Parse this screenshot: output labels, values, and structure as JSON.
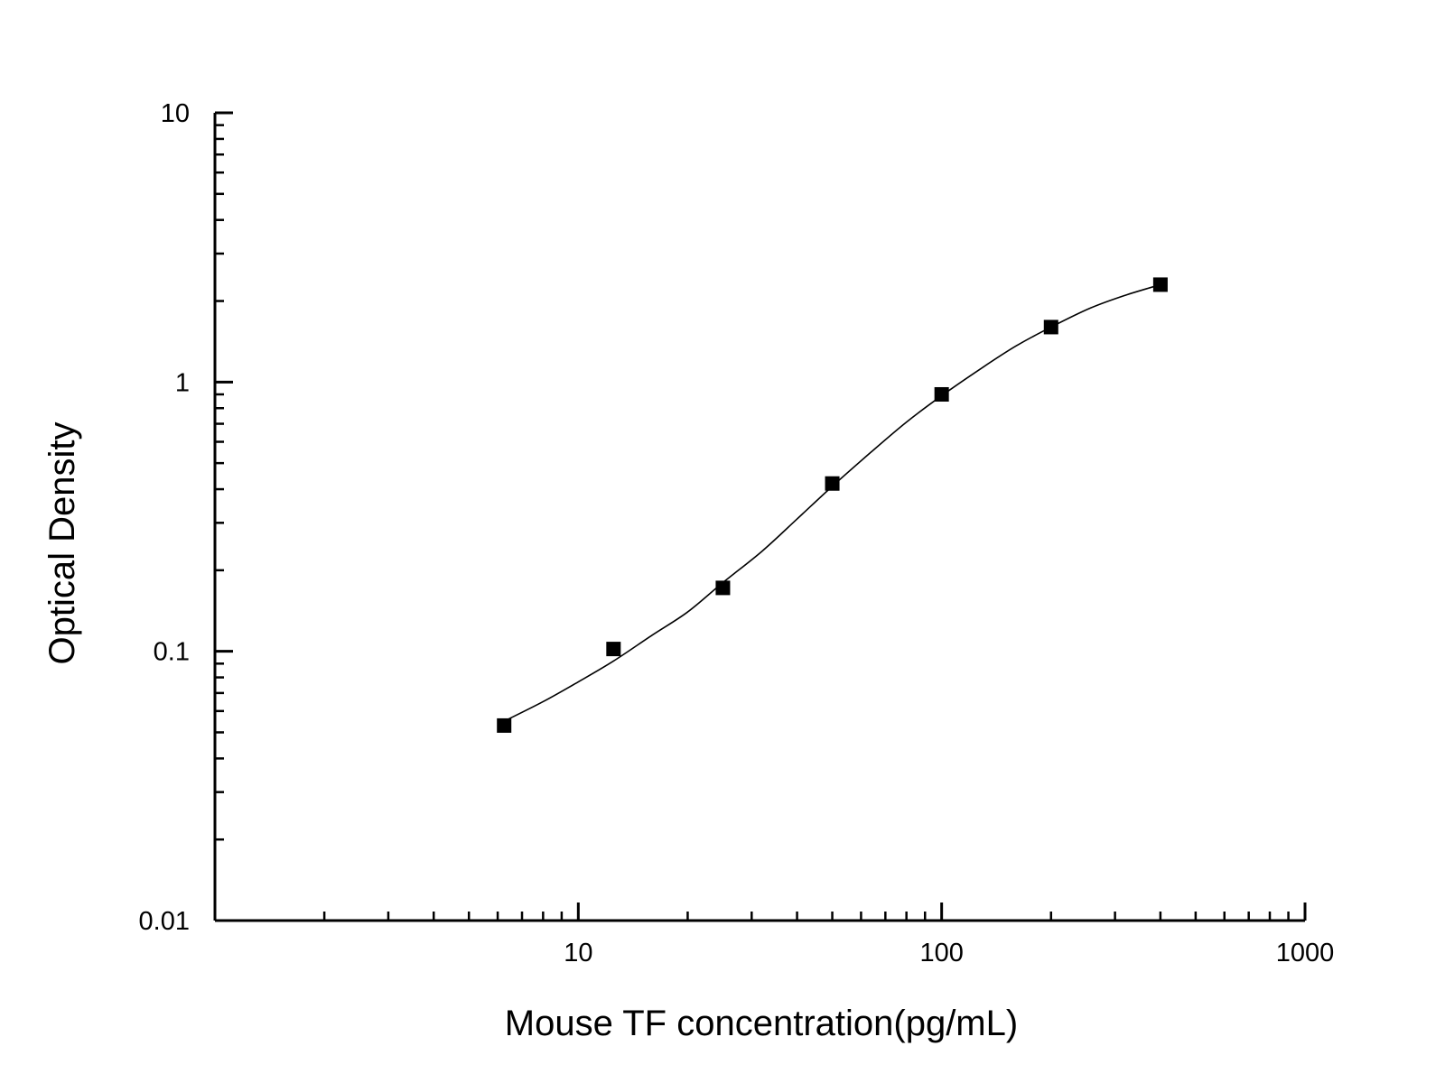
{
  "chart_data": {
    "type": "scatter",
    "title": "",
    "xlabel": "Mouse TF concentration(pg/mL)",
    "ylabel": "Optical Density",
    "x_scale": "log",
    "y_scale": "log",
    "xlim": [
      1,
      1000
    ],
    "ylim": [
      0.01,
      10
    ],
    "x_ticks": [
      {
        "value": 10,
        "label": "10"
      },
      {
        "value": 100,
        "label": "100"
      },
      {
        "value": 1000,
        "label": "1000"
      }
    ],
    "y_ticks": [
      {
        "value": 0.01,
        "label": "0.01"
      },
      {
        "value": 0.1,
        "label": "0.1"
      },
      {
        "value": 1,
        "label": "1"
      },
      {
        "value": 10,
        "label": "10"
      }
    ],
    "grid": false,
    "legend": "none",
    "series": [
      {
        "marker": "square",
        "color": "#000000",
        "x": [
          6.25,
          12.5,
          25,
          50,
          100,
          200,
          400
        ],
        "y": [
          0.053,
          0.102,
          0.172,
          0.42,
          0.9,
          1.6,
          2.3
        ]
      }
    ],
    "fit_curve": {
      "color": "#000000",
      "x": [
        6.25,
        8,
        10,
        12.5,
        16,
        20,
        25,
        32,
        40,
        50,
        64,
        80,
        100,
        128,
        160,
        200,
        256,
        320,
        400
      ],
      "y": [
        0.055,
        0.065,
        0.077,
        0.092,
        0.115,
        0.14,
        0.18,
        0.235,
        0.31,
        0.41,
        0.55,
        0.71,
        0.89,
        1.12,
        1.36,
        1.6,
        1.88,
        2.1,
        2.3
      ]
    }
  }
}
